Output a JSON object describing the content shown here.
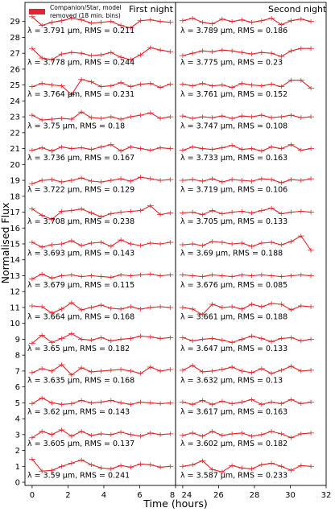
{
  "chart_data": {
    "type": "line",
    "ylabel": "Normalised Flux",
    "xlabel": "Time (hours)",
    "ylim": [
      -0.2,
      30.2
    ],
    "yticks": [
      0,
      1,
      2,
      3,
      4,
      5,
      6,
      7,
      8,
      9,
      10,
      11,
      12,
      13,
      14,
      15,
      16,
      17,
      18,
      19,
      20,
      21,
      22,
      23,
      24,
      25,
      26,
      27,
      28,
      29
    ],
    "legend": {
      "label_line1": "Companion/Star, model",
      "label_line2": "removed (18 min. bins)",
      "placement": "top-left",
      "color": "#e0262b"
    },
    "line_color": "#e0262b",
    "panels": [
      {
        "title": "First night",
        "xlim": [
          -0.4,
          8.0
        ],
        "xticks": [
          0,
          2,
          4,
          6,
          8
        ],
        "x": [
          0.0,
          0.55,
          1.1,
          1.65,
          2.2,
          2.75,
          3.3,
          3.85,
          4.4,
          4.95,
          5.5,
          6.05,
          6.6,
          7.15,
          7.7
        ]
      },
      {
        "title": "Second night",
        "xlim": [
          23.6,
          32.0
        ],
        "xticks": [
          24,
          26,
          28,
          30,
          32
        ],
        "x": [
          24.0,
          24.55,
          25.1,
          25.65,
          26.2,
          26.75,
          27.3,
          27.85,
          28.4,
          28.95,
          29.5,
          30.05,
          30.6,
          31.15
        ]
      }
    ],
    "series": [
      {
        "offset": 1,
        "night1_label": "λ = 3.59 μm, RMS = 0.241",
        "night2_label": "λ = 3.587 μm, RMS = 0.233",
        "night1": [
          1.45,
          0.7,
          0.75,
          1.0,
          1.2,
          1.4,
          1.1,
          0.9,
          0.85,
          1.05,
          0.95,
          1.15,
          1.1,
          0.95,
          1.0
        ],
        "night2": [
          1.0,
          1.1,
          1.35,
          0.8,
          0.65,
          1.05,
          0.9,
          0.85,
          1.1,
          1.2,
          1.0,
          0.75,
          1.05,
          1.0
        ]
      },
      {
        "offset": 3,
        "night1_label": "λ = 3.605 μm, RMS = 0.137",
        "night2_label": "λ = 3.602 μm, RMS = 0.182",
        "night1": [
          2.8,
          3.2,
          3.0,
          3.3,
          2.9,
          3.2,
          2.95,
          3.05,
          3.0,
          3.15,
          3.0,
          2.9,
          3.1,
          3.0,
          3.05
        ],
        "night2": [
          2.95,
          3.1,
          2.9,
          3.2,
          2.95,
          3.05,
          3.1,
          2.9,
          3.0,
          3.2,
          3.05,
          2.8,
          3.05,
          3.1
        ]
      },
      {
        "offset": 5,
        "night1_label": "λ = 3.62 μm, RMS = 0.143",
        "night2_label": "λ = 3.617 μm, RMS = 0.163",
        "night1": [
          4.95,
          5.3,
          5.0,
          4.9,
          4.95,
          5.15,
          5.0,
          5.05,
          5.15,
          5.0,
          4.9,
          5.05,
          5.0,
          4.95,
          5.0
        ],
        "night2": [
          5.05,
          4.9,
          5.15,
          4.9,
          5.1,
          4.95,
          5.05,
          5.2,
          4.9,
          5.05,
          4.95,
          5.2,
          4.95,
          5.05
        ]
      },
      {
        "offset": 7,
        "night1_label": "λ = 3.635 μm, RMS = 0.168",
        "night2_label": "λ = 3.632 μm, RMS = 0.13",
        "night1": [
          6.9,
          7.15,
          7.0,
          7.4,
          6.75,
          7.2,
          6.95,
          7.0,
          7.05,
          7.1,
          7.0,
          6.85,
          7.25,
          7.0,
          7.1
        ],
        "night2": [
          7.05,
          7.35,
          6.95,
          7.0,
          7.1,
          7.25,
          7.0,
          6.9,
          7.15,
          6.85,
          7.05,
          7.3,
          7.0,
          7.05
        ]
      },
      {
        "offset": 9,
        "night1_label": "λ = 3.65 μm, RMS = 0.182",
        "night2_label": "λ = 3.647 μm, RMS = 0.133",
        "night1": [
          8.75,
          9.25,
          8.8,
          9.05,
          9.35,
          9.0,
          8.95,
          9.1,
          8.9,
          9.0,
          9.05,
          9.2,
          9.15,
          9.05,
          9.1
        ],
        "night2": [
          9.1,
          8.9,
          9.0,
          9.05,
          8.95,
          8.8,
          9.0,
          9.2,
          9.05,
          8.85,
          9.05,
          9.1,
          8.9,
          9.0
        ]
      },
      {
        "offset": 11,
        "night1_label": "λ = 3.664 μm, RMS = 0.168",
        "night2_label": "λ = 3.661 μm, RMS = 0.188",
        "night1": [
          11.1,
          11.05,
          10.65,
          10.9,
          11.3,
          10.85,
          11.0,
          11.15,
          10.95,
          10.9,
          11.05,
          10.9,
          11.0,
          11.05,
          11.0
        ],
        "night2": [
          11.0,
          10.9,
          10.55,
          11.2,
          11.0,
          11.05,
          10.9,
          11.2,
          11.05,
          11.25,
          11.2,
          10.85,
          11.1,
          11.05
        ]
      },
      {
        "offset": 13,
        "night1_label": "λ = 3.679 μm, RMS = 0.115",
        "night2_label": "λ = 3.676 μm, RMS = 0.085",
        "night1": [
          12.8,
          13.1,
          12.85,
          13.0,
          13.05,
          12.95,
          13.0,
          12.95,
          12.9,
          13.05,
          13.0,
          13.05,
          13.1,
          13.0,
          13.05
        ],
        "night2": [
          13.05,
          13.0,
          12.95,
          13.05,
          13.0,
          12.95,
          13.05,
          13.0,
          13.05,
          13.0,
          12.95,
          13.0,
          13.05,
          13.0
        ]
      },
      {
        "offset": 15,
        "night1_label": "λ = 3.693 μm, RMS = 0.143",
        "night2_label": "λ = 3.69 μm, RMS = 0.188",
        "night1": [
          15.1,
          14.8,
          14.95,
          15.0,
          15.2,
          14.9,
          15.05,
          15.1,
          14.85,
          15.25,
          15.0,
          14.9,
          15.05,
          15.0,
          15.1
        ],
        "night2": [
          14.95,
          15.0,
          14.9,
          15.15,
          15.1,
          15.0,
          15.05,
          14.85,
          15.05,
          15.1,
          14.95,
          15.15,
          15.5,
          14.6
        ]
      },
      {
        "offset": 17,
        "night1_label": "λ = 3.708 μm, RMS = 0.238",
        "night2_label": "λ = 3.705 μm, RMS = 0.133",
        "night1": [
          17.2,
          16.8,
          16.55,
          17.05,
          17.1,
          17.2,
          16.95,
          16.7,
          16.9,
          17.0,
          17.05,
          17.1,
          17.4,
          16.85,
          16.95
        ],
        "night2": [
          16.95,
          17.0,
          16.85,
          17.1,
          16.9,
          17.0,
          17.05,
          16.95,
          17.1,
          17.25,
          16.9,
          17.0,
          17.05,
          17.0
        ]
      },
      {
        "offset": 19,
        "night1_label": "λ = 3.722 μm, RMS = 0.129",
        "night2_label": "λ = 3.719 μm, RMS = 0.106",
        "night1": [
          18.8,
          19.0,
          19.05,
          18.9,
          19.0,
          19.15,
          18.95,
          18.9,
          19.0,
          19.1,
          18.95,
          19.2,
          19.1,
          19.0,
          19.05
        ],
        "night2": [
          19.0,
          19.05,
          18.95,
          19.1,
          18.9,
          19.05,
          19.0,
          18.95,
          19.1,
          19.05,
          18.85,
          19.05,
          19.0,
          19.1
        ]
      },
      {
        "offset": 21,
        "night1_label": "λ = 3.736 μm, RMS = 0.167",
        "night2_label": "λ = 3.733 μm, RMS = 0.163",
        "night1": [
          20.9,
          21.05,
          20.85,
          21.1,
          21.0,
          21.05,
          20.95,
          21.1,
          21.25,
          20.85,
          21.1,
          21.0,
          20.9,
          21.05,
          21.0
        ],
        "night2": [
          20.9,
          21.1,
          21.0,
          20.95,
          21.05,
          21.2,
          20.95,
          21.0,
          20.85,
          21.1,
          21.0,
          21.25,
          20.9,
          21.0
        ]
      },
      {
        "offset": 23,
        "night1_label": "λ = 3.75 μm, RMS = 0.18",
        "night2_label": "λ = 3.747 μm, RMS = 0.108",
        "night1": [
          23.1,
          22.8,
          22.85,
          22.9,
          22.85,
          23.3,
          22.95,
          22.9,
          23.0,
          22.85,
          23.0,
          23.1,
          23.25,
          22.9,
          23.0
        ],
        "night2": [
          23.05,
          22.9,
          23.0,
          22.95,
          23.05,
          22.9,
          23.05,
          23.0,
          23.1,
          22.95,
          23.0,
          23.1,
          22.95,
          23.0
        ]
      },
      {
        "offset": 25,
        "night1_label": "λ = 3.764 μm, RMS = 0.231",
        "night2_label": "λ = 3.761 μm, RMS = 0.152",
        "night1": [
          24.9,
          25.1,
          25.0,
          24.95,
          24.4,
          25.35,
          25.2,
          24.9,
          24.95,
          25.15,
          24.9,
          25.05,
          25.1,
          24.85,
          25.05
        ],
        "night2": [
          25.05,
          24.95,
          25.1,
          24.95,
          25.0,
          24.85,
          25.1,
          25.0,
          24.95,
          25.05,
          24.9,
          25.3,
          25.3,
          24.8
        ]
      },
      {
        "offset": 27,
        "night1_label": "λ = 3.778 μm, RMS = 0.244",
        "night2_label": "λ = 3.775 μm, RMS = 0.23",
        "night1": [
          27.3,
          26.7,
          26.6,
          26.95,
          27.05,
          27.0,
          26.85,
          26.9,
          27.05,
          26.75,
          26.6,
          26.9,
          27.35,
          27.2,
          27.1
        ],
        "night2": [
          26.85,
          27.0,
          27.15,
          27.1,
          27.2,
          27.15,
          27.05,
          26.95,
          27.05,
          27.0,
          26.8,
          27.15,
          27.3,
          27.3
        ]
      },
      {
        "offset": 29,
        "night1_label": "λ = 3.791 μm, RMS = 0.211",
        "night2_label": "λ = 3.789 μm, RMS = 0.186",
        "night1": [
          29.3,
          28.75,
          28.95,
          29.05,
          29.2,
          29.1,
          28.9,
          28.95,
          29.0,
          28.75,
          28.6,
          29.05,
          29.1,
          29.0,
          28.95
        ],
        "night2": [
          29.05,
          29.2,
          28.95,
          28.85,
          29.15,
          29.0,
          29.1,
          28.95,
          29.05,
          29.2,
          28.8,
          29.05,
          29.15,
          29.0
        ]
      }
    ]
  }
}
